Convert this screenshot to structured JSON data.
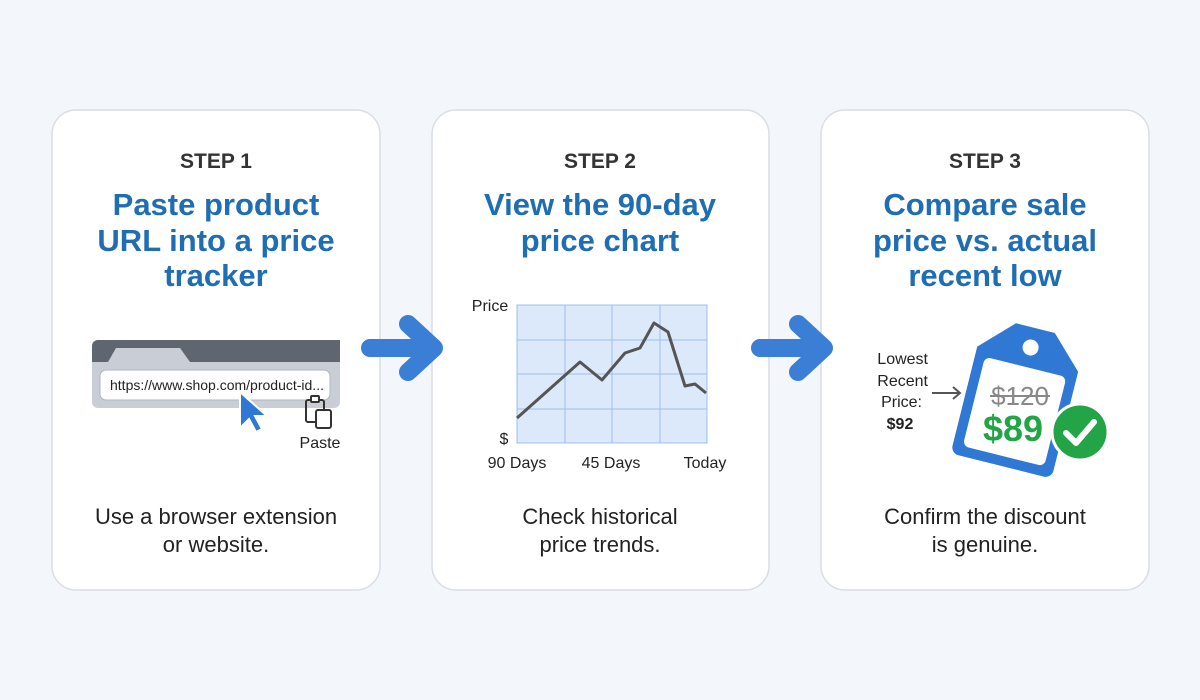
{
  "steps": [
    {
      "label": "STEP 1",
      "title": [
        "Paste product",
        "URL into a price",
        "tracker"
      ],
      "illustration": {
        "url": "https://www.shop.com/product-id...",
        "action": "Paste"
      },
      "description": [
        "Use a browser extension",
        "or website."
      ]
    },
    {
      "label": "STEP 2",
      "title": [
        "View the 90-day",
        "price chart"
      ],
      "illustration": {
        "y_label": "Price",
        "y_unit": "$",
        "x_labels": [
          "90 Days",
          "45 Days",
          "Today"
        ]
      },
      "description": [
        "Check historical",
        "price trends."
      ]
    },
    {
      "label": "STEP 3",
      "title": [
        "Compare sale",
        "price vs. actual",
        "recent low"
      ],
      "illustration": {
        "note": [
          "Lowest",
          "Recent",
          "Price:"
        ],
        "lowest_price": "$92",
        "old_price": "$120",
        "sale_price": "$89"
      },
      "description": [
        "Confirm the discount",
        "is genuine."
      ]
    }
  ]
}
